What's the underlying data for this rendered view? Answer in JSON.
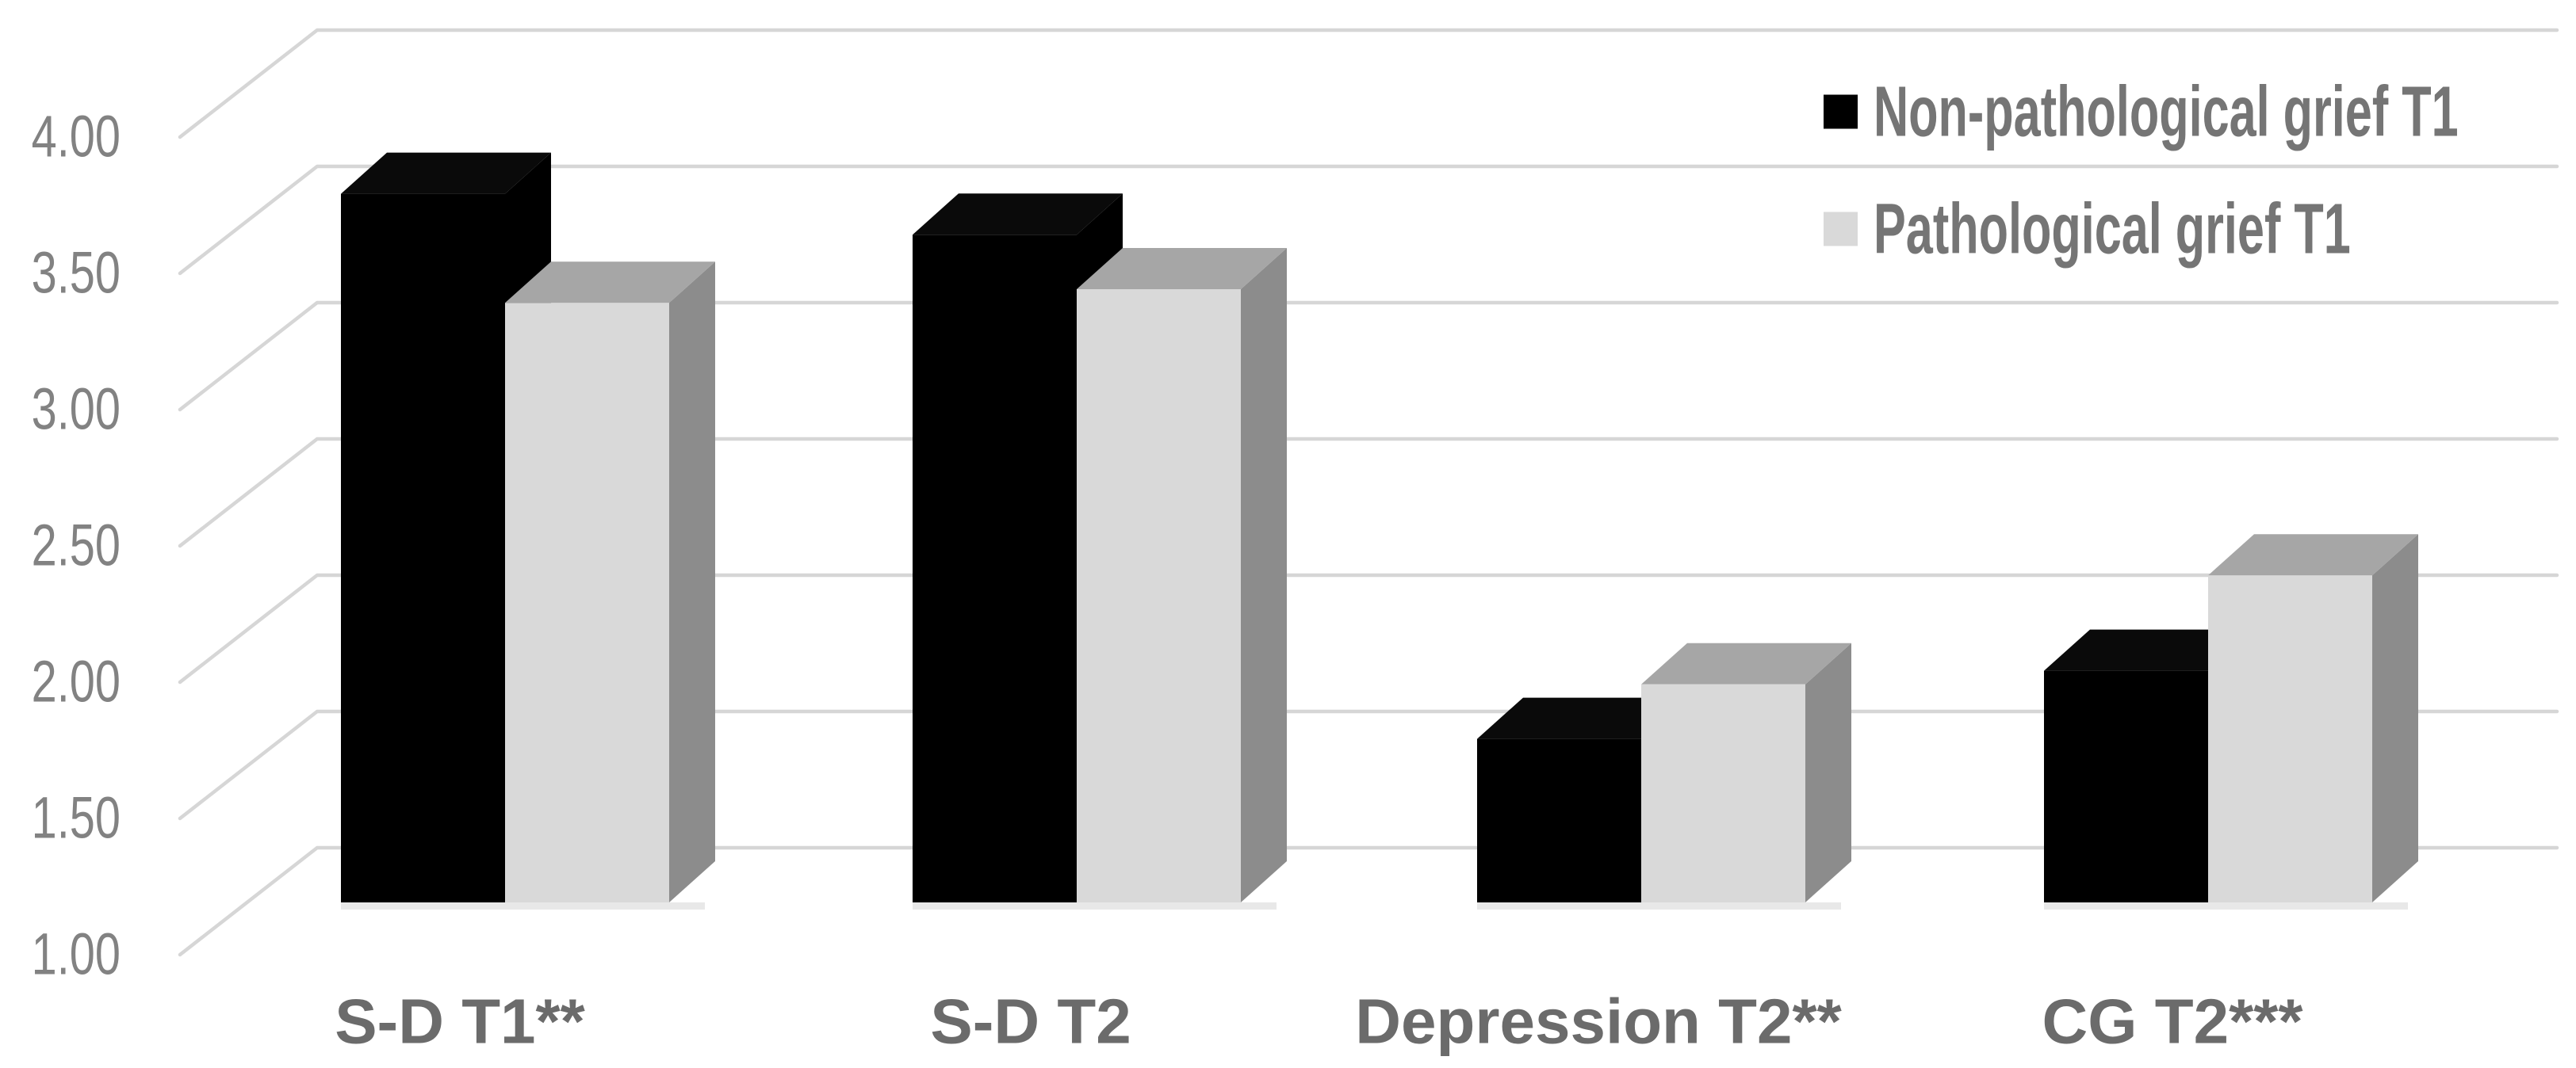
{
  "figure": {
    "background": "#ffffff"
  },
  "chart_data": {
    "type": "bar",
    "style_3d": true,
    "title": "",
    "xlabel": "",
    "ylabel": "",
    "categories": [
      "S-D T1**",
      "S-D T2",
      "Depression T2**",
      "CG T2***"
    ],
    "series": [
      {
        "name": "Non-pathological grief T1",
        "key": "non-pathological-grief-t1",
        "values": [
          3.6,
          3.45,
          1.6,
          1.85
        ],
        "front_color": "#000000",
        "top_color": "#0a0a0a",
        "side_color": "#000000"
      },
      {
        "name": "Pathological grief T1",
        "key": "pathological-grief-t1",
        "values": [
          3.2,
          3.25,
          1.8,
          2.2
        ],
        "front_color": "#d9d9d9",
        "top_color": "#a6a6a6",
        "side_color": "#8c8c8c"
      }
    ],
    "ylim": [
      1.0,
      4.0
    ],
    "ytick_labels": [
      "4.00",
      "3.50",
      "3.00",
      "2.50",
      "2.00",
      "1.50",
      "1.00"
    ],
    "ytick_values": [
      4.0,
      3.5,
      3.0,
      2.5,
      2.0,
      1.5,
      1.0
    ],
    "grid": "horizontal",
    "legend_position": "top-right"
  },
  "legend": {
    "items": [
      {
        "label": "Non-pathological grief T1",
        "swatch": "#000000"
      },
      {
        "label": "Pathological grief T1",
        "swatch": "#d9d9d9"
      }
    ]
  },
  "colors": {
    "gridline": "#d6d6d6",
    "tick_label": "#828282",
    "category_label": "#6b6b6b",
    "legend_label": "#757575",
    "bar_shadow": "#e8e8e8"
  }
}
